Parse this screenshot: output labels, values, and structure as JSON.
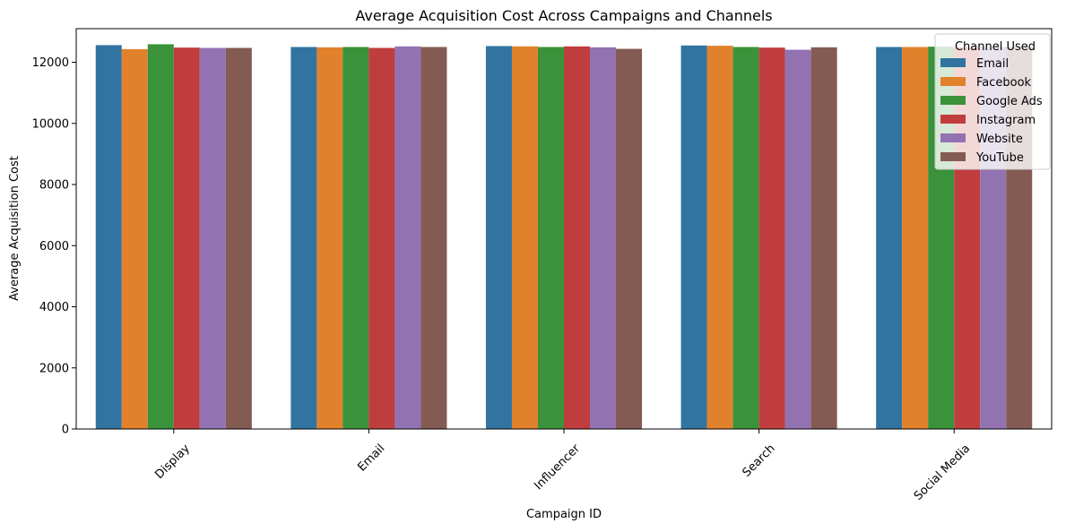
{
  "chart_data": {
    "type": "bar",
    "title": "Average Acquisition Cost Across Campaigns and Channels",
    "xlabel": "Campaign ID",
    "ylabel": "Average Acquisition Cost",
    "ylim": [
      0,
      13100
    ],
    "yticks": [
      0,
      2000,
      4000,
      6000,
      8000,
      10000,
      12000
    ],
    "categories": [
      "Display",
      "Email",
      "Influencer",
      "Search",
      "Social Media"
    ],
    "grid": false,
    "legend": {
      "title": "Channel Used",
      "placement": "top-right"
    },
    "series": [
      {
        "name": "Email",
        "color": "#3274a1",
        "values": [
          12560,
          12500,
          12530,
          12550,
          12500
        ]
      },
      {
        "name": "Facebook",
        "color": "#e1812c",
        "values": [
          12430,
          12490,
          12520,
          12540,
          12500
        ]
      },
      {
        "name": "Google Ads",
        "color": "#3a923a",
        "values": [
          12590,
          12500,
          12500,
          12500,
          12510
        ]
      },
      {
        "name": "Instagram",
        "color": "#c03d3e",
        "values": [
          12480,
          12470,
          12520,
          12480,
          12490
        ]
      },
      {
        "name": "Website",
        "color": "#9372b2",
        "values": [
          12470,
          12520,
          12490,
          12410,
          12500
        ]
      },
      {
        "name": "YouTube",
        "color": "#845b53",
        "values": [
          12470,
          12500,
          12440,
          12490,
          12510
        ]
      }
    ]
  }
}
